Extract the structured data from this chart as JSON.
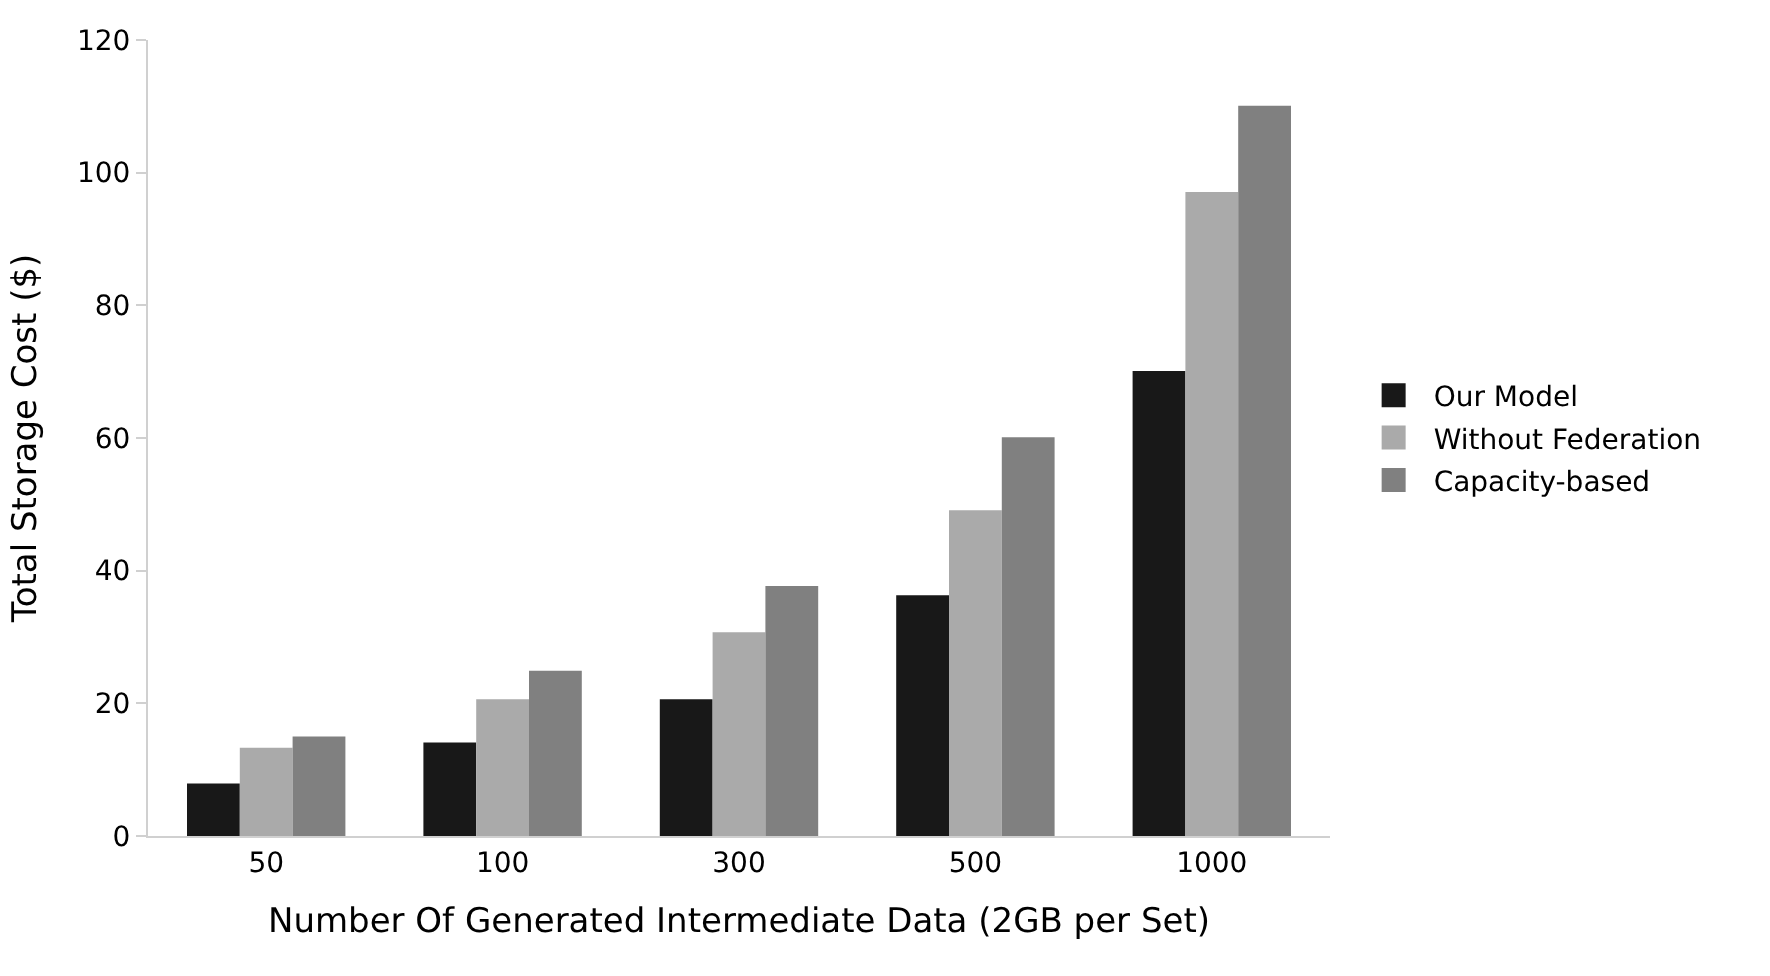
{
  "chart_data": {
    "type": "bar",
    "xlabel": "Number Of Generated Intermediate Data (2GB per Set)",
    "ylabel": "Total Storage Cost ($)",
    "categories": [
      "50",
      "100",
      "300",
      "500",
      "1000"
    ],
    "series": [
      {
        "name": "Our Model",
        "color": "#181818",
        "values": [
          7.9,
          14.1,
          20.6,
          36.3,
          70.1
        ]
      },
      {
        "name": "Without Federation",
        "color": "#aaaaaa",
        "values": [
          13.3,
          20.6,
          30.7,
          49.1,
          97.1
        ]
      },
      {
        "name": "Capacity-based",
        "color": "#808080",
        "values": [
          15.0,
          24.9,
          37.7,
          60.1,
          110.1
        ]
      }
    ],
    "ylim": [
      0,
      120
    ],
    "yticks": [
      0,
      20,
      40,
      60,
      80,
      100,
      120
    ],
    "legend": "right"
  }
}
